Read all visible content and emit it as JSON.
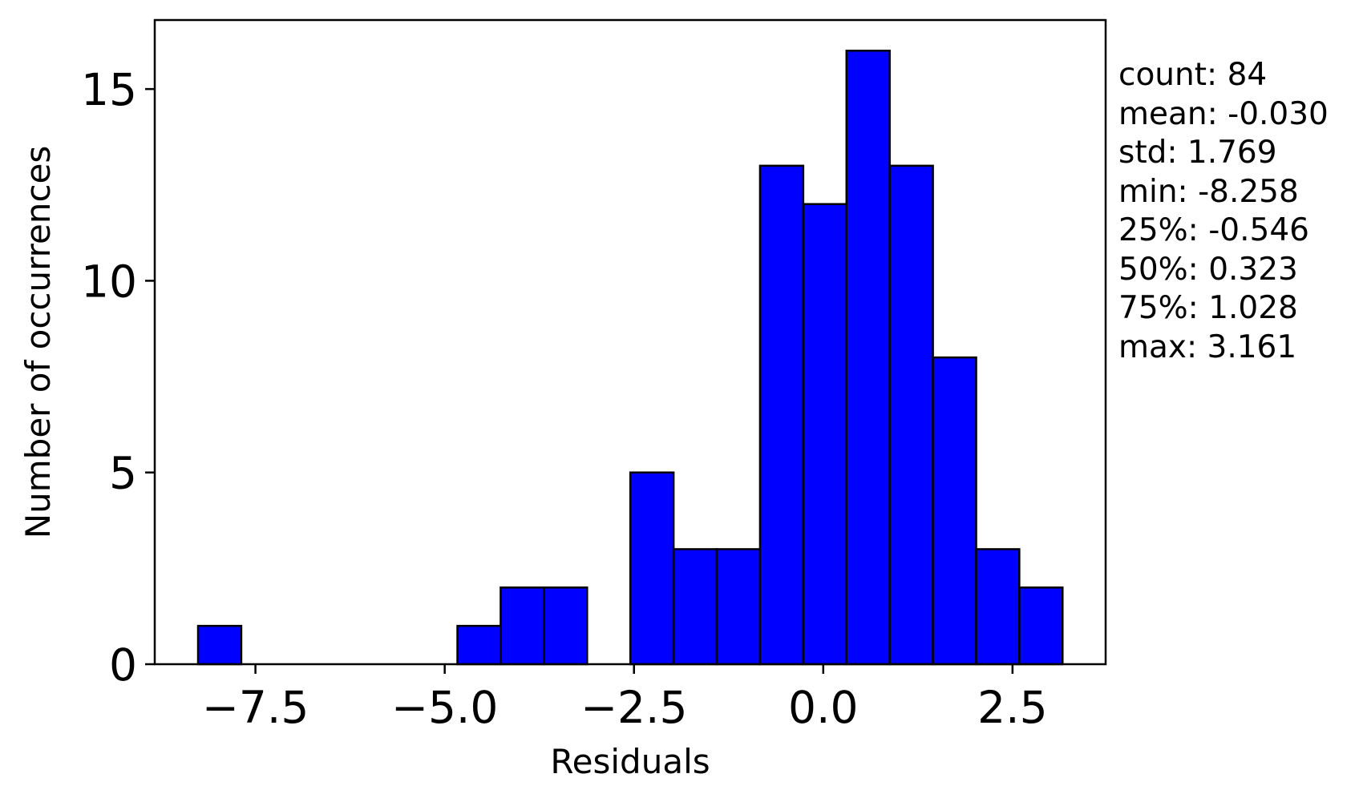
{
  "chart_data": {
    "type": "bar",
    "title": "",
    "xlabel": "Residuals",
    "ylabel": "Number of occurrences",
    "xlim": [
      -8.83,
      3.73
    ],
    "ylim": [
      0,
      16.8
    ],
    "bar_color": "#0000ff",
    "edge_color": "#000000",
    "bin_edges": [
      -8.258,
      -7.687,
      -7.116,
      -6.545,
      -5.974,
      -5.403,
      -4.832,
      -4.261,
      -3.69,
      -3.119,
      -2.548,
      -1.977,
      -1.406,
      -0.835,
      -0.264,
      0.307,
      0.878,
      1.449,
      2.02,
      2.59,
      3.161
    ],
    "values": [
      1,
      0,
      0,
      0,
      0,
      0,
      1,
      2,
      2,
      0,
      5,
      3,
      3,
      13,
      12,
      16,
      13,
      8,
      3,
      2
    ],
    "x_ticks": [
      -7.5,
      -5.0,
      -2.5,
      0.0,
      2.5
    ],
    "x_tick_labels": [
      "−7.5",
      "−5.0",
      "−2.5",
      "0.0",
      "2.5"
    ],
    "y_ticks": [
      0,
      5,
      10,
      15
    ],
    "y_tick_labels": [
      "0",
      "5",
      "10",
      "15"
    ],
    "grid": false,
    "stats": [
      "count: 84",
      "mean: -0.030",
      "std: 1.769",
      "min: -8.258",
      "25%: -0.546",
      "50%: 0.323",
      "75%: 1.028",
      "max: 3.161"
    ]
  }
}
